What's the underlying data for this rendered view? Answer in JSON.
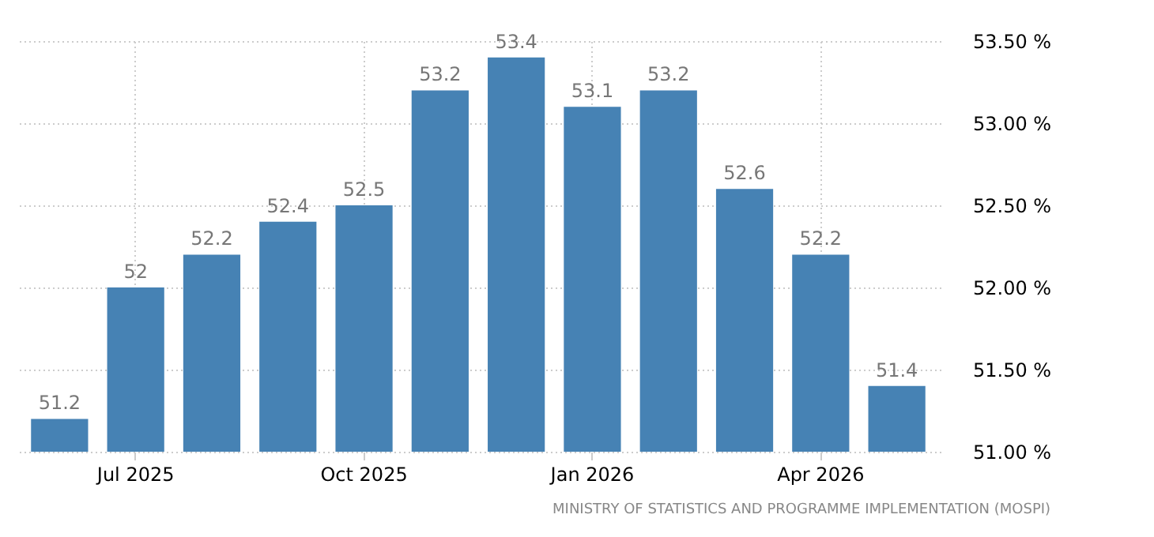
{
  "chart_data": {
    "type": "bar",
    "categories": [
      null,
      "Jul 2025",
      null,
      null,
      "Oct 2025",
      null,
      null,
      "Jan 2026",
      null,
      null,
      "Apr 2026",
      null
    ],
    "values": [
      51.2,
      52,
      52.2,
      52.4,
      52.5,
      53.2,
      53.4,
      53.1,
      53.2,
      52.6,
      52.2,
      51.4
    ],
    "color": "#4682b4",
    "ylim": [
      51,
      53.5
    ],
    "yticks": [
      {
        "value": 51,
        "label": "51.00 %"
      },
      {
        "value": 51.5,
        "label": "51.50 %"
      },
      {
        "value": 52,
        "label": "52.00 %"
      },
      {
        "value": 52.5,
        "label": "52.50 %"
      },
      {
        "value": 53,
        "label": "53.00 %"
      },
      {
        "value": 53.5,
        "label": "53.50 %"
      }
    ],
    "grid": true,
    "data_labels": true,
    "annotations": [
      "MINISTRY OF STATISTICS AND PROGRAMME IMPLEMENTATION (MOSPI)"
    ]
  }
}
